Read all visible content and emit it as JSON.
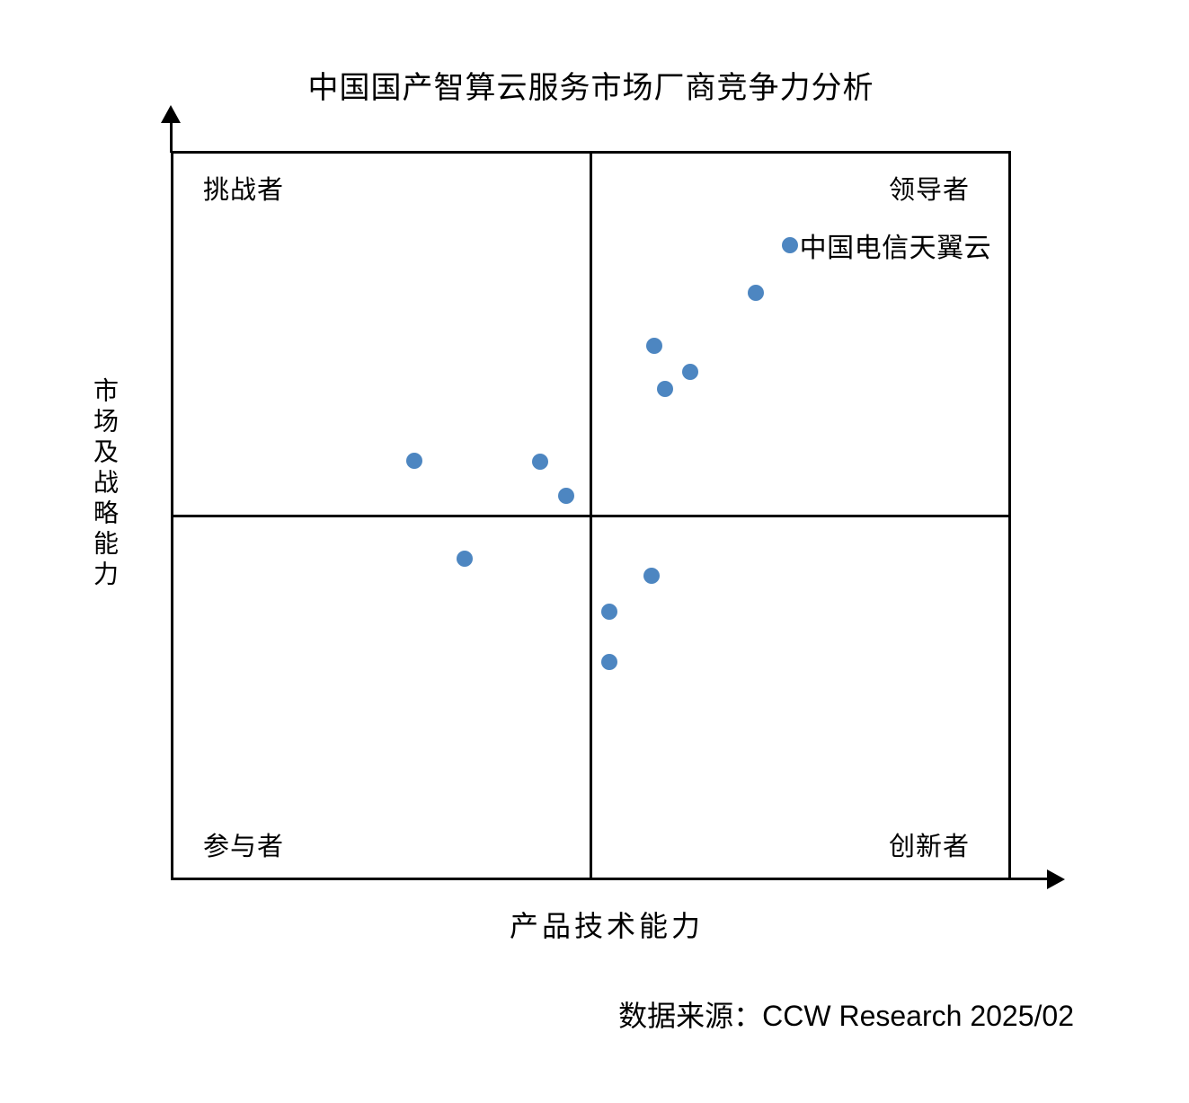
{
  "title": "中国国产智算云服务市场厂商竞争力分析",
  "y_axis_label": "市场及战略能力",
  "x_axis_label": "产品技术能力",
  "source_note": "数据来源：CCW Research 2025/02",
  "quadrant_labels": {
    "top_left": "挑战者",
    "top_right": "领导者",
    "bottom_left": "参与者",
    "bottom_right": "创新者"
  },
  "dot_color": "#4d86c1",
  "chart_data": {
    "type": "scatter",
    "title": "中国国产智算云服务市场厂商竞争力分析",
    "xlabel": "产品技术能力",
    "ylabel": "市场及战略能力",
    "xlim": [
      0,
      100
    ],
    "ylim": [
      0,
      100
    ],
    "x_midline": 50,
    "y_midline": 50,
    "grid": false,
    "points": [
      {
        "x": 73.8,
        "y": 87.3,
        "label": "中国电信天翼云"
      },
      {
        "x": 69.7,
        "y": 80.8
      },
      {
        "x": 57.6,
        "y": 73.4
      },
      {
        "x": 61.9,
        "y": 69.8
      },
      {
        "x": 58.9,
        "y": 67.5
      },
      {
        "x": 28.8,
        "y": 57.6
      },
      {
        "x": 43.9,
        "y": 57.5
      },
      {
        "x": 47.0,
        "y": 52.7
      },
      {
        "x": 34.9,
        "y": 44.1
      },
      {
        "x": 57.3,
        "y": 41.7
      },
      {
        "x": 52.2,
        "y": 36.7
      },
      {
        "x": 52.2,
        "y": 29.8
      }
    ]
  }
}
